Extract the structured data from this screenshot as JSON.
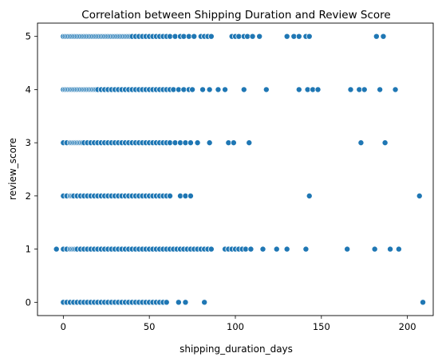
{
  "chart_data": {
    "type": "scatter",
    "title": "Correlation between Shipping Duration and Review Score",
    "xlabel": "shipping_duration_days",
    "ylabel": "review_score",
    "xlim": [
      -15,
      215
    ],
    "ylim": [
      -0.25,
      5.25
    ],
    "xticks": [
      0,
      50,
      100,
      150,
      200
    ],
    "yticks": [
      0,
      1,
      2,
      3,
      4,
      5
    ],
    "grid": false,
    "marker_color": "#1f77b4",
    "series": [
      {
        "points": [
          [
            0,
            5
          ],
          [
            1,
            5
          ],
          [
            2,
            5
          ],
          [
            3,
            5
          ],
          [
            4,
            5
          ],
          [
            5,
            5
          ],
          [
            6,
            5
          ],
          [
            7,
            5
          ],
          [
            8,
            5
          ],
          [
            9,
            5
          ],
          [
            10,
            5
          ],
          [
            11,
            5
          ],
          [
            12,
            5
          ],
          [
            13,
            5
          ],
          [
            14,
            5
          ],
          [
            15,
            5
          ],
          [
            16,
            5
          ],
          [
            17,
            5
          ],
          [
            18,
            5
          ],
          [
            19,
            5
          ],
          [
            20,
            5
          ],
          [
            21,
            5
          ],
          [
            22,
            5
          ],
          [
            23,
            5
          ],
          [
            24,
            5
          ],
          [
            25,
            5
          ],
          [
            26,
            5
          ],
          [
            27,
            5
          ],
          [
            28,
            5
          ],
          [
            29,
            5
          ],
          [
            30,
            5
          ],
          [
            31,
            5
          ],
          [
            32,
            5
          ],
          [
            33,
            5
          ],
          [
            34,
            5
          ],
          [
            35,
            5
          ],
          [
            36,
            5
          ],
          [
            37,
            5
          ],
          [
            38,
            5
          ],
          [
            39,
            5
          ],
          [
            40,
            5
          ],
          [
            42,
            5
          ],
          [
            44,
            5
          ],
          [
            46,
            5
          ],
          [
            48,
            5
          ],
          [
            50,
            5
          ],
          [
            52,
            5
          ],
          [
            54,
            5
          ],
          [
            56,
            5
          ],
          [
            58,
            5
          ],
          [
            60,
            5
          ],
          [
            62,
            5
          ],
          [
            65,
            5
          ],
          [
            68,
            5
          ],
          [
            70,
            5
          ],
          [
            73,
            5
          ],
          [
            76,
            5
          ],
          [
            80,
            5
          ],
          [
            82,
            5
          ],
          [
            84,
            5
          ],
          [
            86,
            5
          ],
          [
            98,
            5
          ],
          [
            100,
            5
          ],
          [
            102,
            5
          ],
          [
            105,
            5
          ],
          [
            107,
            5
          ],
          [
            110,
            5
          ],
          [
            114,
            5
          ],
          [
            130,
            5
          ],
          [
            134,
            5
          ],
          [
            137,
            5
          ],
          [
            141,
            5
          ],
          [
            143,
            5
          ],
          [
            182,
            5
          ],
          [
            186,
            5
          ],
          [
            0,
            4
          ],
          [
            1,
            4
          ],
          [
            2,
            4
          ],
          [
            3,
            4
          ],
          [
            4,
            4
          ],
          [
            5,
            4
          ],
          [
            6,
            4
          ],
          [
            7,
            4
          ],
          [
            8,
            4
          ],
          [
            9,
            4
          ],
          [
            10,
            4
          ],
          [
            11,
            4
          ],
          [
            12,
            4
          ],
          [
            13,
            4
          ],
          [
            14,
            4
          ],
          [
            15,
            4
          ],
          [
            16,
            4
          ],
          [
            17,
            4
          ],
          [
            18,
            4
          ],
          [
            19,
            4
          ],
          [
            20,
            4
          ],
          [
            22,
            4
          ],
          [
            24,
            4
          ],
          [
            26,
            4
          ],
          [
            28,
            4
          ],
          [
            30,
            4
          ],
          [
            32,
            4
          ],
          [
            34,
            4
          ],
          [
            36,
            4
          ],
          [
            38,
            4
          ],
          [
            40,
            4
          ],
          [
            42,
            4
          ],
          [
            44,
            4
          ],
          [
            46,
            4
          ],
          [
            48,
            4
          ],
          [
            50,
            4
          ],
          [
            52,
            4
          ],
          [
            54,
            4
          ],
          [
            56,
            4
          ],
          [
            58,
            4
          ],
          [
            60,
            4
          ],
          [
            62,
            4
          ],
          [
            64,
            4
          ],
          [
            67,
            4
          ],
          [
            70,
            4
          ],
          [
            73,
            4
          ],
          [
            75,
            4
          ],
          [
            81,
            4
          ],
          [
            85,
            4
          ],
          [
            90,
            4
          ],
          [
            94,
            4
          ],
          [
            105,
            4
          ],
          [
            118,
            4
          ],
          [
            137,
            4
          ],
          [
            142,
            4
          ],
          [
            145,
            4
          ],
          [
            148,
            4
          ],
          [
            167,
            4
          ],
          [
            172,
            4
          ],
          [
            175,
            4
          ],
          [
            184,
            4
          ],
          [
            193,
            4
          ],
          [
            0,
            3
          ],
          [
            2,
            3
          ],
          [
            4,
            3
          ],
          [
            5,
            3
          ],
          [
            6,
            3
          ],
          [
            7,
            3
          ],
          [
            8,
            3
          ],
          [
            9,
            3
          ],
          [
            10,
            3
          ],
          [
            11,
            3
          ],
          [
            12,
            3
          ],
          [
            14,
            3
          ],
          [
            16,
            3
          ],
          [
            18,
            3
          ],
          [
            20,
            3
          ],
          [
            22,
            3
          ],
          [
            24,
            3
          ],
          [
            26,
            3
          ],
          [
            28,
            3
          ],
          [
            30,
            3
          ],
          [
            32,
            3
          ],
          [
            34,
            3
          ],
          [
            36,
            3
          ],
          [
            38,
            3
          ],
          [
            40,
            3
          ],
          [
            42,
            3
          ],
          [
            44,
            3
          ],
          [
            46,
            3
          ],
          [
            48,
            3
          ],
          [
            50,
            3
          ],
          [
            52,
            3
          ],
          [
            54,
            3
          ],
          [
            56,
            3
          ],
          [
            58,
            3
          ],
          [
            60,
            3
          ],
          [
            62,
            3
          ],
          [
            65,
            3
          ],
          [
            68,
            3
          ],
          [
            71,
            3
          ],
          [
            74,
            3
          ],
          [
            78,
            3
          ],
          [
            85,
            3
          ],
          [
            96,
            3
          ],
          [
            99,
            3
          ],
          [
            108,
            3
          ],
          [
            173,
            3
          ],
          [
            187,
            3
          ],
          [
            0,
            2
          ],
          [
            2,
            2
          ],
          [
            4,
            2
          ],
          [
            5,
            2
          ],
          [
            6,
            2
          ],
          [
            8,
            2
          ],
          [
            10,
            2
          ],
          [
            12,
            2
          ],
          [
            14,
            2
          ],
          [
            16,
            2
          ],
          [
            18,
            2
          ],
          [
            20,
            2
          ],
          [
            22,
            2
          ],
          [
            24,
            2
          ],
          [
            26,
            2
          ],
          [
            28,
            2
          ],
          [
            30,
            2
          ],
          [
            32,
            2
          ],
          [
            34,
            2
          ],
          [
            36,
            2
          ],
          [
            38,
            2
          ],
          [
            40,
            2
          ],
          [
            42,
            2
          ],
          [
            44,
            2
          ],
          [
            46,
            2
          ],
          [
            48,
            2
          ],
          [
            50,
            2
          ],
          [
            52,
            2
          ],
          [
            54,
            2
          ],
          [
            56,
            2
          ],
          [
            58,
            2
          ],
          [
            60,
            2
          ],
          [
            62,
            2
          ],
          [
            68,
            2
          ],
          [
            71,
            2
          ],
          [
            74,
            2
          ],
          [
            143,
            2
          ],
          [
            207,
            2
          ],
          [
            -4,
            1
          ],
          [
            0,
            1
          ],
          [
            2,
            1
          ],
          [
            4,
            1
          ],
          [
            5,
            1
          ],
          [
            6,
            1
          ],
          [
            7,
            1
          ],
          [
            8,
            1
          ],
          [
            10,
            1
          ],
          [
            12,
            1
          ],
          [
            14,
            1
          ],
          [
            16,
            1
          ],
          [
            18,
            1
          ],
          [
            20,
            1
          ],
          [
            22,
            1
          ],
          [
            24,
            1
          ],
          [
            26,
            1
          ],
          [
            28,
            1
          ],
          [
            30,
            1
          ],
          [
            32,
            1
          ],
          [
            34,
            1
          ],
          [
            36,
            1
          ],
          [
            38,
            1
          ],
          [
            40,
            1
          ],
          [
            42,
            1
          ],
          [
            44,
            1
          ],
          [
            46,
            1
          ],
          [
            48,
            1
          ],
          [
            50,
            1
          ],
          [
            52,
            1
          ],
          [
            54,
            1
          ],
          [
            56,
            1
          ],
          [
            58,
            1
          ],
          [
            60,
            1
          ],
          [
            62,
            1
          ],
          [
            64,
            1
          ],
          [
            66,
            1
          ],
          [
            68,
            1
          ],
          [
            70,
            1
          ],
          [
            72,
            1
          ],
          [
            74,
            1
          ],
          [
            76,
            1
          ],
          [
            78,
            1
          ],
          [
            80,
            1
          ],
          [
            82,
            1
          ],
          [
            84,
            1
          ],
          [
            86,
            1
          ],
          [
            94,
            1
          ],
          [
            96,
            1
          ],
          [
            98,
            1
          ],
          [
            100,
            1
          ],
          [
            102,
            1
          ],
          [
            104,
            1
          ],
          [
            106,
            1
          ],
          [
            109,
            1
          ],
          [
            116,
            1
          ],
          [
            124,
            1
          ],
          [
            130,
            1
          ],
          [
            141,
            1
          ],
          [
            165,
            1
          ],
          [
            181,
            1
          ],
          [
            190,
            1
          ],
          [
            195,
            1
          ],
          [
            0,
            0
          ],
          [
            2,
            0
          ],
          [
            4,
            0
          ],
          [
            6,
            0
          ],
          [
            8,
            0
          ],
          [
            10,
            0
          ],
          [
            12,
            0
          ],
          [
            14,
            0
          ],
          [
            16,
            0
          ],
          [
            18,
            0
          ],
          [
            20,
            0
          ],
          [
            22,
            0
          ],
          [
            24,
            0
          ],
          [
            26,
            0
          ],
          [
            28,
            0
          ],
          [
            30,
            0
          ],
          [
            32,
            0
          ],
          [
            34,
            0
          ],
          [
            36,
            0
          ],
          [
            38,
            0
          ],
          [
            40,
            0
          ],
          [
            42,
            0
          ],
          [
            44,
            0
          ],
          [
            46,
            0
          ],
          [
            48,
            0
          ],
          [
            50,
            0
          ],
          [
            52,
            0
          ],
          [
            54,
            0
          ],
          [
            56,
            0
          ],
          [
            58,
            0
          ],
          [
            60,
            0
          ],
          [
            67,
            0
          ],
          [
            71,
            0
          ],
          [
            82,
            0
          ],
          [
            209,
            0
          ]
        ]
      }
    ]
  }
}
